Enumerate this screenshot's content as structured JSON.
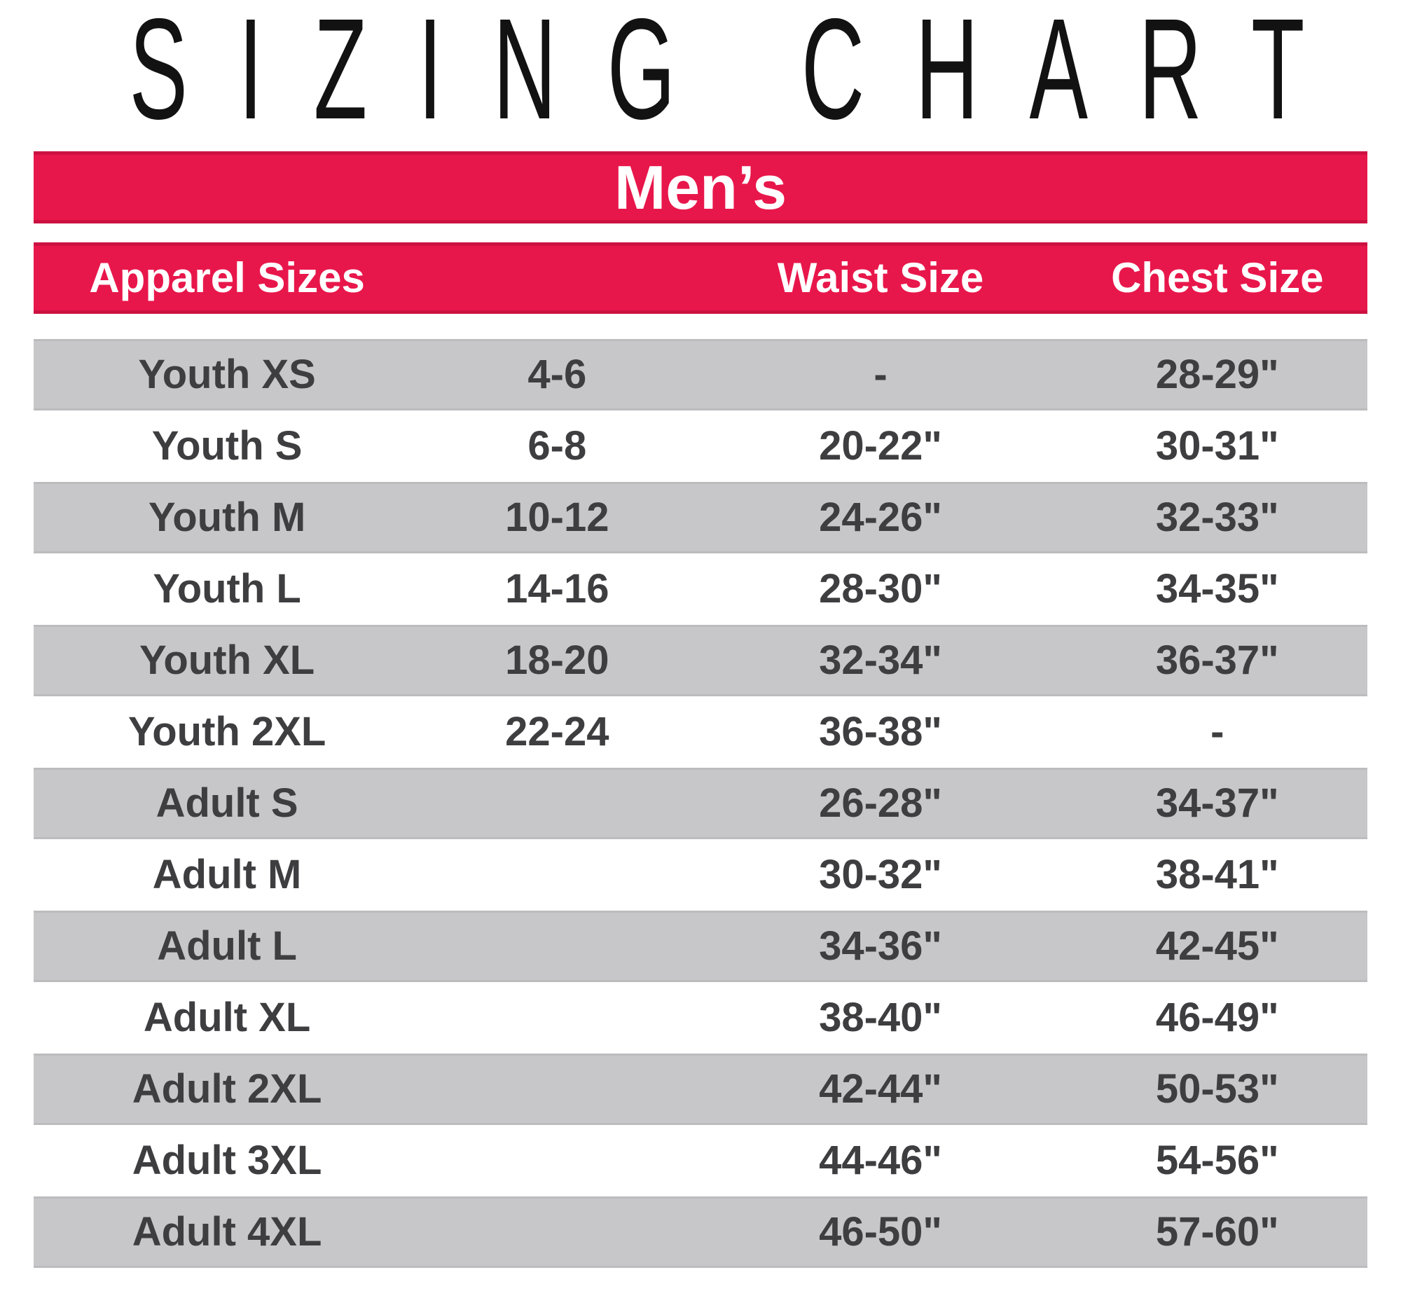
{
  "title": "SIZING CHART",
  "banner": {
    "label": "Men’s"
  },
  "colors": {
    "accent_red": "#E8174B",
    "row_gray": "#C7C7C9",
    "banner_text": "#FFFFFF",
    "body_text": "#3E3E40",
    "title_black": "#121212"
  },
  "chart_data": {
    "type": "table",
    "title": "SIZING CHART",
    "subtitle": "Men’s",
    "columns": [
      "Apparel Sizes",
      "",
      "Waist Size",
      "Chest Size"
    ],
    "rows": [
      [
        "Youth XS",
        "4-6",
        "-",
        "28-29\""
      ],
      [
        "Youth S",
        "6-8",
        "20-22\"",
        "30-31\""
      ],
      [
        "Youth M",
        "10-12",
        "24-26\"",
        "32-33\""
      ],
      [
        "Youth L",
        "14-16",
        "28-30\"",
        "34-35\""
      ],
      [
        "Youth XL",
        "18-20",
        "32-34\"",
        "36-37\""
      ],
      [
        "Youth 2XL",
        "22-24",
        "36-38\"",
        "-"
      ],
      [
        "Adult S",
        "",
        "26-28\"",
        "34-37\""
      ],
      [
        "Adult M",
        "",
        "30-32\"",
        "38-41\""
      ],
      [
        "Adult L",
        "",
        "34-36\"",
        "42-45\""
      ],
      [
        "Adult XL",
        "",
        "38-40\"",
        "46-49\""
      ],
      [
        "Adult 2XL",
        "",
        "42-44\"",
        "50-53\""
      ],
      [
        "Adult 3XL",
        "",
        "44-46\"",
        "54-56\""
      ],
      [
        "Adult 4XL",
        "",
        "46-50\"",
        "57-60\""
      ]
    ],
    "layout": {
      "row_striping": "alternating gray/white starting gray",
      "header_background": "#E8174B",
      "grid": "off"
    }
  }
}
